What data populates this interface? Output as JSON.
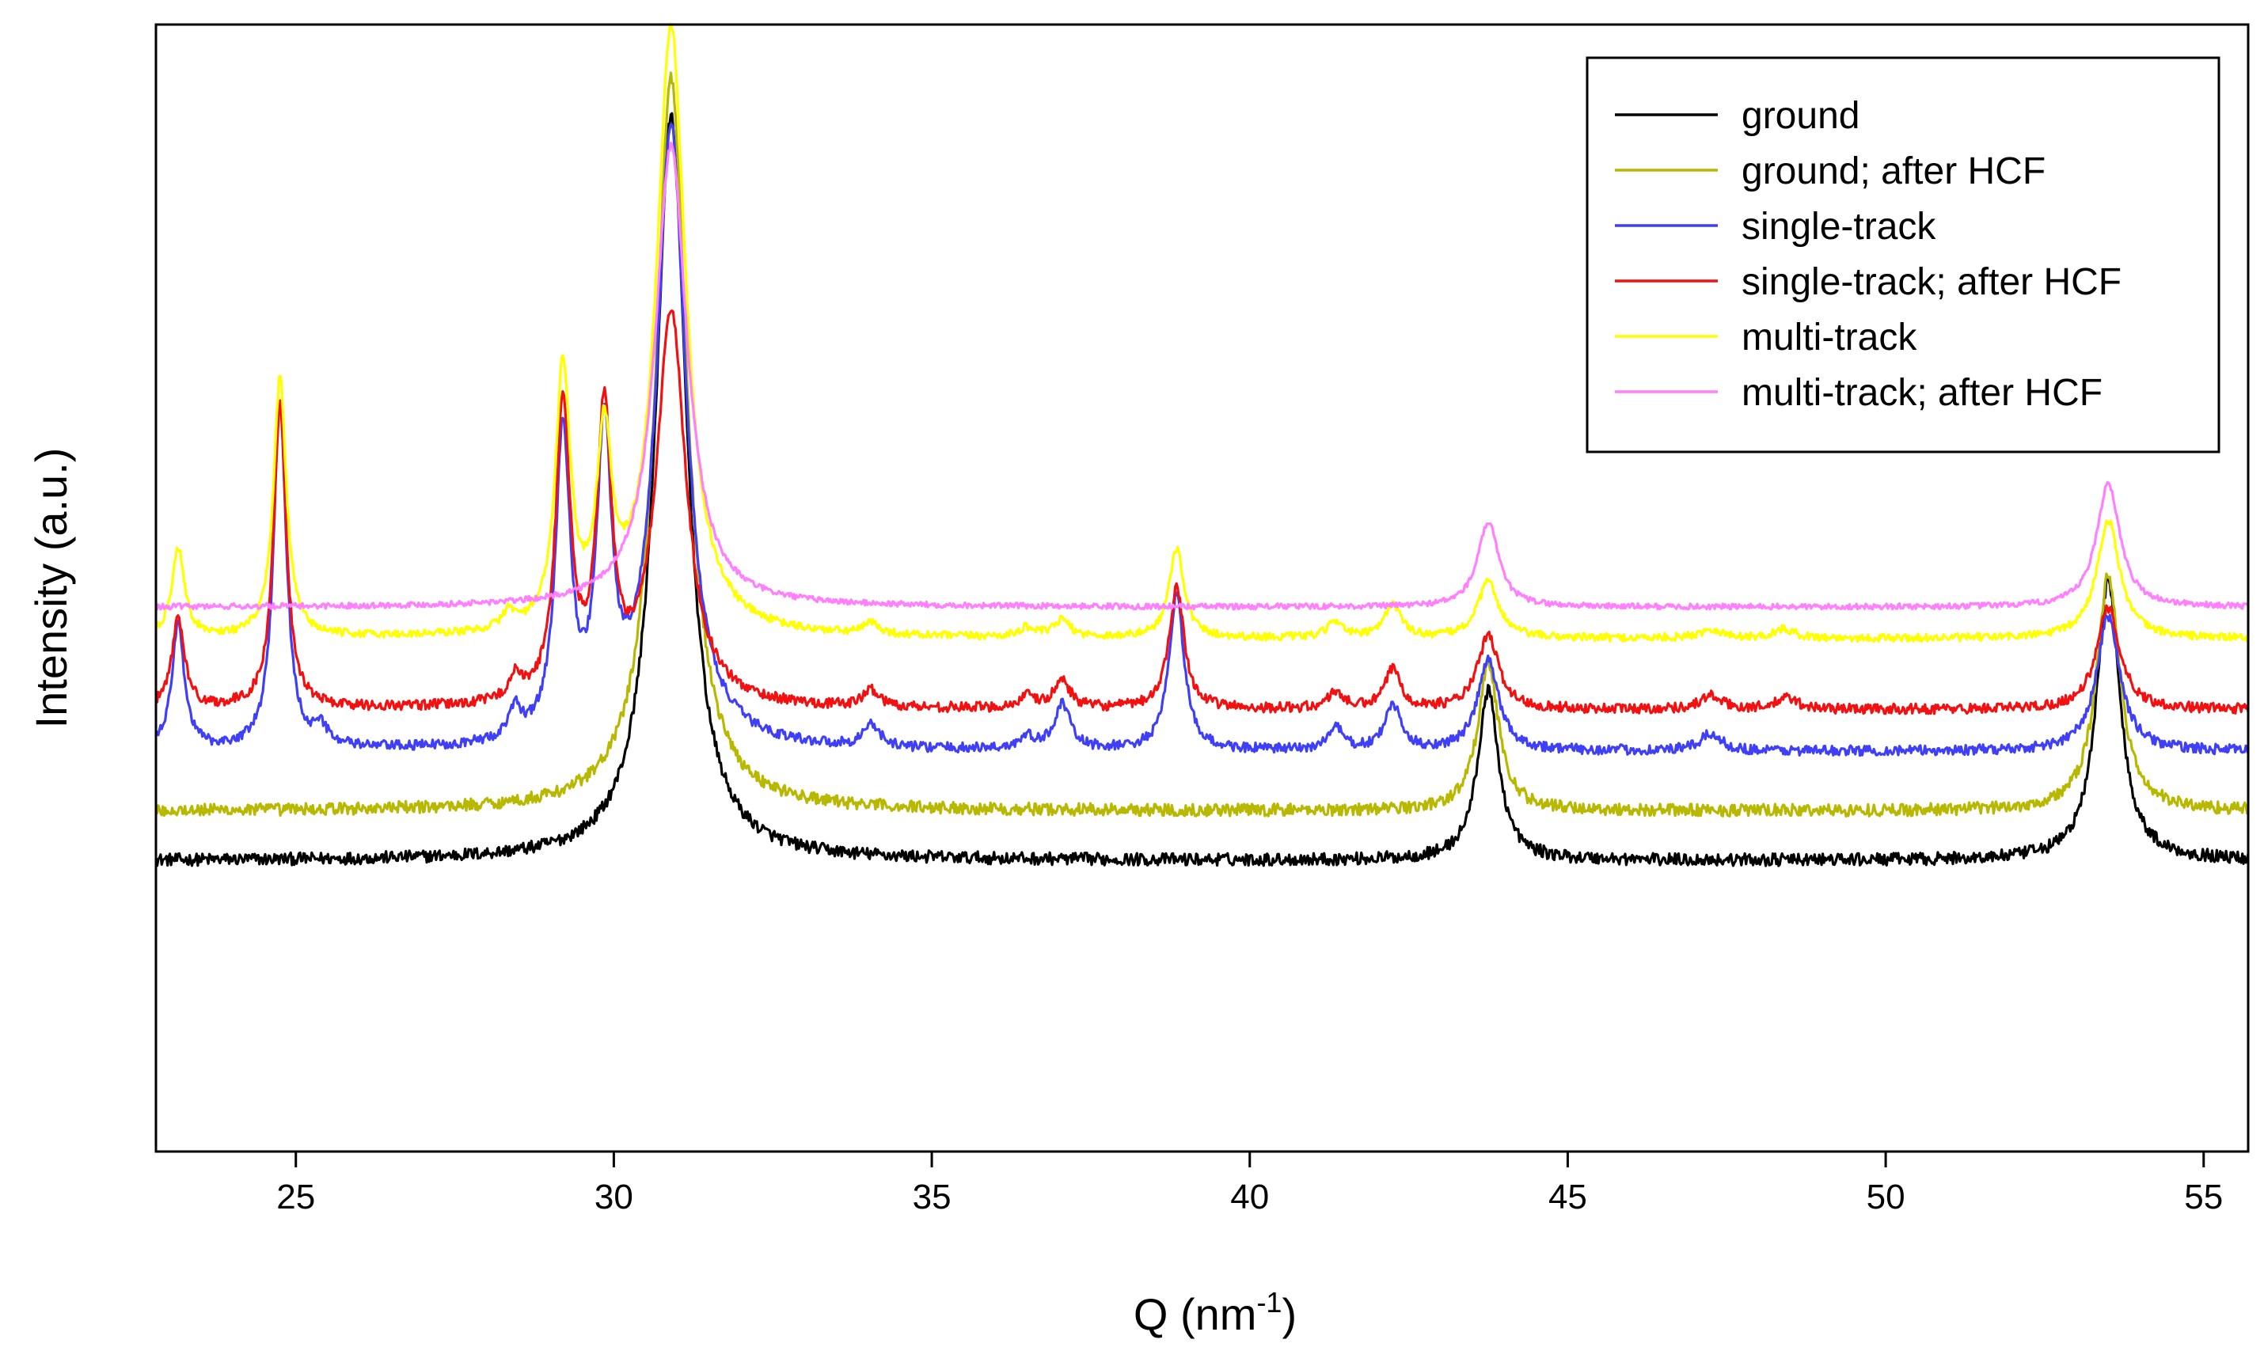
{
  "chart_data": {
    "type": "line",
    "title": "",
    "xlabel": "Q (nm",
    "xlabel_superscript": "-1",
    "xlabel_suffix": ")",
    "ylabel": "Intensity (a.u.)",
    "xlim": [
      22.8,
      55.7
    ],
    "ylim": [
      0,
      100
    ],
    "xticks": [
      25,
      30,
      35,
      40,
      45,
      50,
      55
    ],
    "legend_position": "top-right",
    "series": [
      {
        "name": "ground",
        "color": "#000000",
        "baseline": 25.8,
        "noise": 0.55,
        "peaks": [
          [
            23.15,
            0,
            0.12
          ],
          [
            24.75,
            0,
            0.12
          ],
          [
            29.2,
            0,
            0.14
          ],
          [
            29.85,
            0,
            0.14
          ],
          [
            30.9,
            66,
            0.3
          ],
          [
            38.85,
            0,
            0.14
          ],
          [
            43.75,
            15,
            0.2
          ],
          [
            53.5,
            25,
            0.22
          ]
        ]
      },
      {
        "name": "ground; after HCF",
        "color": "#B8B800",
        "baseline": 30.2,
        "noise": 0.55,
        "peaks": [
          [
            30.9,
            65,
            0.3
          ],
          [
            43.75,
            13,
            0.2
          ],
          [
            53.5,
            21,
            0.22
          ]
        ]
      },
      {
        "name": "single-track",
        "color": "#3F3FF8",
        "baseline": 35.5,
        "noise": 0.45,
        "peaks": [
          [
            23.15,
            11,
            0.12
          ],
          [
            24.75,
            31,
            0.12
          ],
          [
            25.4,
            1.5,
            0.15
          ],
          [
            28.45,
            2.5,
            0.12
          ],
          [
            29.2,
            27,
            0.14
          ],
          [
            29.85,
            26,
            0.14
          ],
          [
            30.9,
            55,
            0.28
          ],
          [
            34.05,
            2,
            0.15
          ],
          [
            36.5,
            1,
            0.15
          ],
          [
            37.05,
            4,
            0.15
          ],
          [
            38.85,
            14,
            0.14
          ],
          [
            41.35,
            2,
            0.14
          ],
          [
            42.25,
            4,
            0.15
          ],
          [
            43.75,
            8,
            0.2
          ],
          [
            47.25,
            1.5,
            0.2
          ],
          [
            53.5,
            12,
            0.22
          ]
        ]
      },
      {
        "name": "single-track; after HCF",
        "color": "#F21010",
        "baseline": 39.2,
        "noise": 0.45,
        "peaks": [
          [
            23.15,
            8,
            0.12
          ],
          [
            24.75,
            27,
            0.12
          ],
          [
            28.45,
            2,
            0.12
          ],
          [
            29.2,
            26,
            0.14
          ],
          [
            29.85,
            25,
            0.14
          ],
          [
            30.9,
            35,
            0.28
          ],
          [
            34.05,
            1.5,
            0.15
          ],
          [
            36.5,
            1,
            0.15
          ],
          [
            37.05,
            2.5,
            0.15
          ],
          [
            38.85,
            11,
            0.14
          ],
          [
            41.35,
            1.5,
            0.14
          ],
          [
            42.25,
            3.5,
            0.15
          ],
          [
            43.75,
            6.5,
            0.2
          ],
          [
            47.25,
            1.2,
            0.2
          ],
          [
            48.45,
            1,
            0.2
          ],
          [
            53.5,
            9,
            0.22
          ]
        ]
      },
      {
        "name": "multi-track",
        "color": "#FFFF00",
        "baseline": 45.5,
        "noise": 0.35,
        "peaks": [
          [
            23.15,
            8,
            0.12
          ],
          [
            24.75,
            23,
            0.12
          ],
          [
            28.35,
            1.5,
            0.12
          ],
          [
            29.2,
            23,
            0.14
          ],
          [
            29.85,
            16,
            0.14
          ],
          [
            30.9,
            54,
            0.28
          ],
          [
            34.05,
            1,
            0.15
          ],
          [
            36.5,
            0.8,
            0.15
          ],
          [
            37.05,
            1.5,
            0.15
          ],
          [
            38.85,
            8,
            0.14
          ],
          [
            41.35,
            1.5,
            0.14
          ],
          [
            42.25,
            3,
            0.15
          ],
          [
            43.75,
            5,
            0.2
          ],
          [
            47.25,
            0.8,
            0.2
          ],
          [
            48.4,
            0.8,
            0.2
          ],
          [
            53.5,
            10.5,
            0.22
          ]
        ]
      },
      {
        "name": "multi-track; after HCF",
        "color": "#FF7FFF",
        "baseline": 48.3,
        "noise": 0.25,
        "peaks": [
          [
            30.9,
            41,
            0.3
          ],
          [
            43.75,
            7.5,
            0.2
          ],
          [
            53.5,
            11,
            0.22
          ]
        ]
      }
    ]
  }
}
